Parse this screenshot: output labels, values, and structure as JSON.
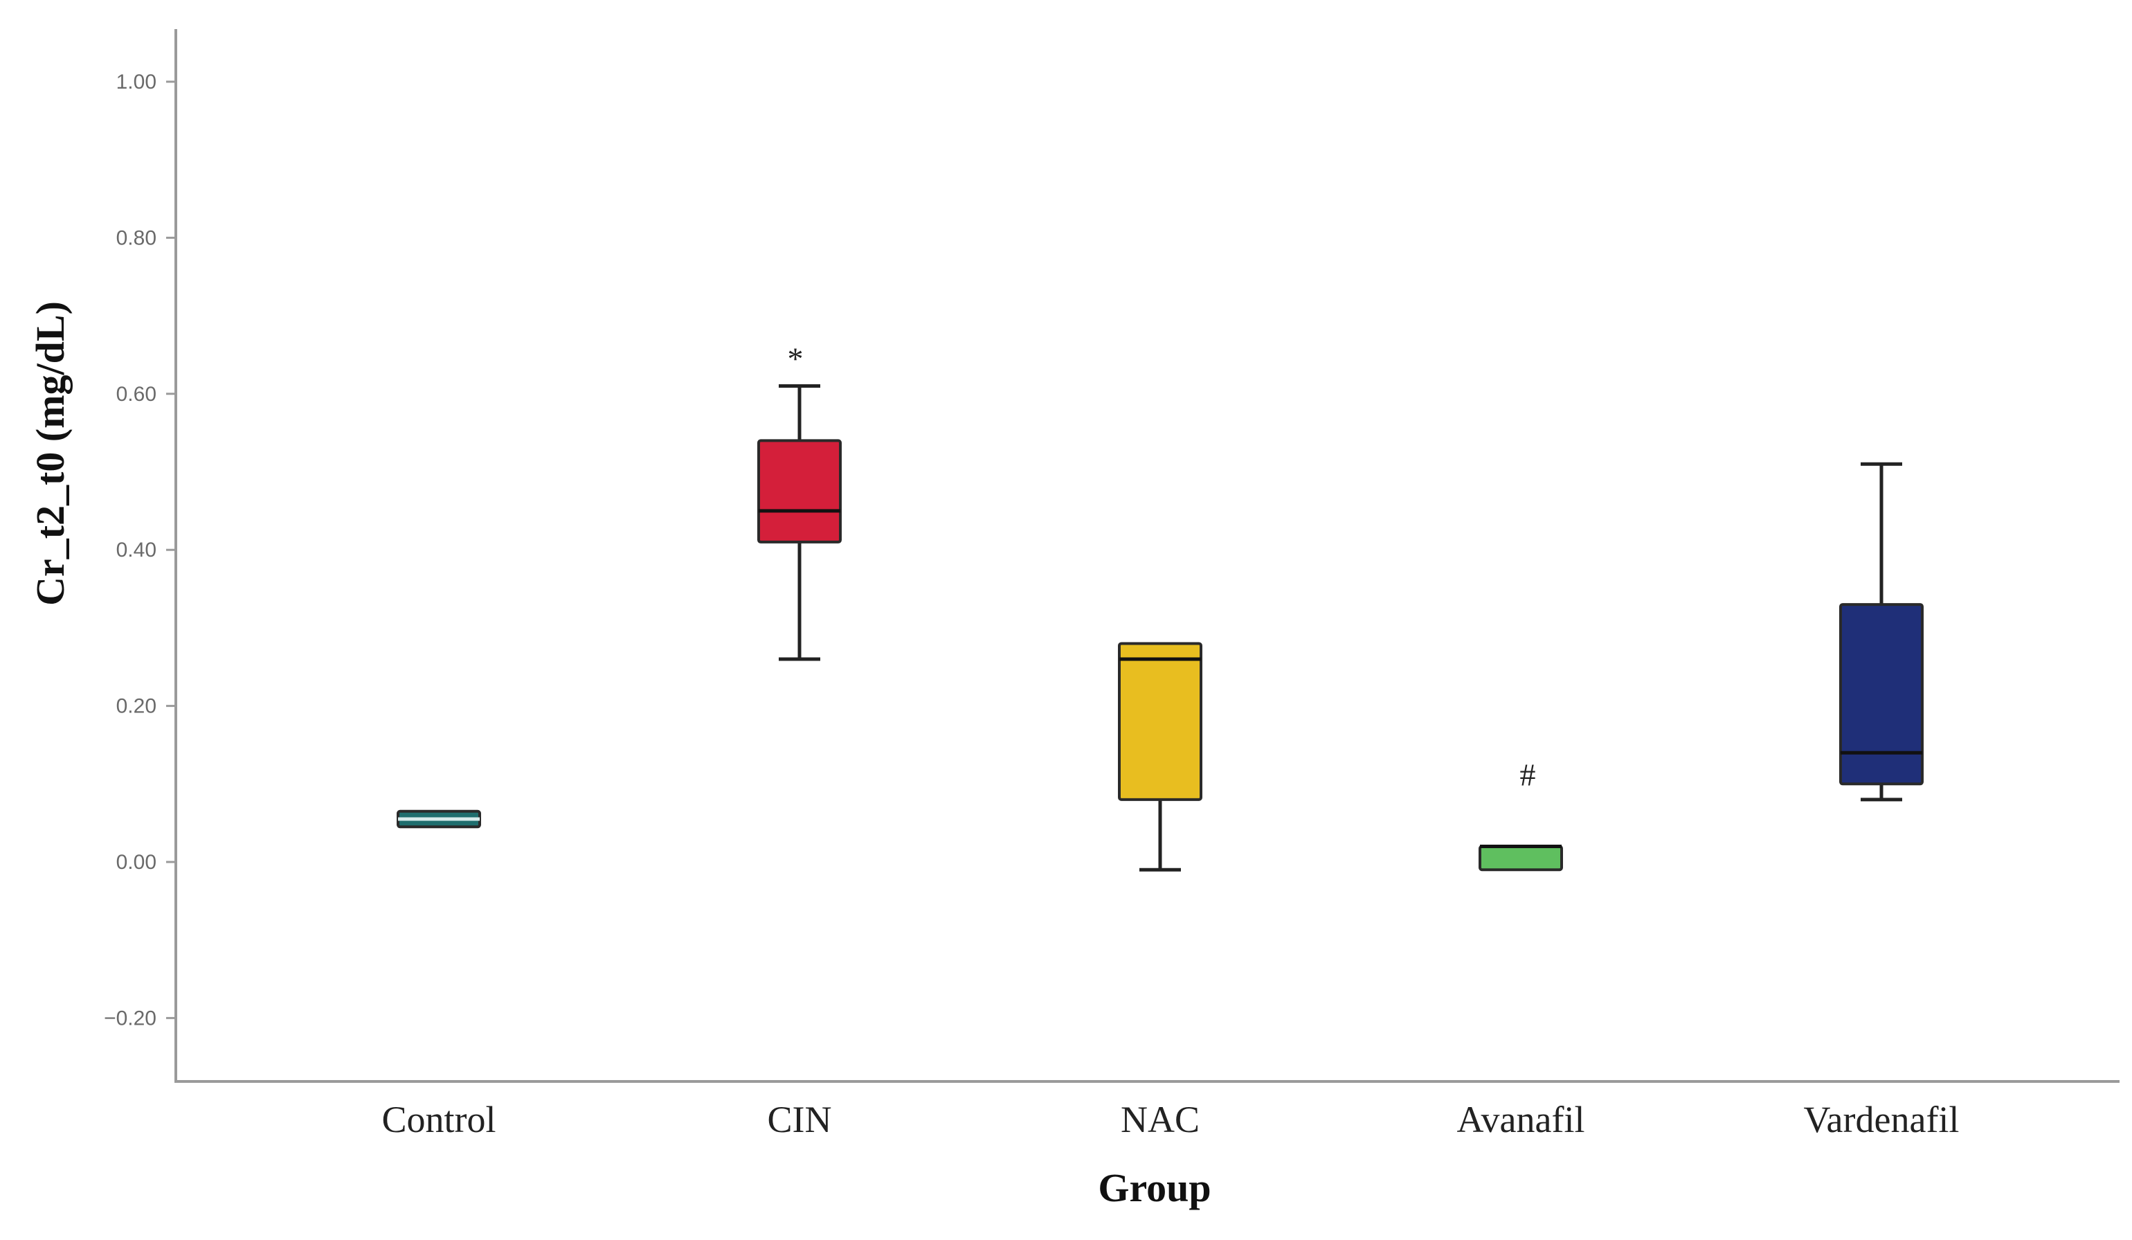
{
  "chart_data": {
    "type": "box",
    "title": "",
    "xlabel": "Group",
    "ylabel": "Cr_t2_t0 (mg/dL)",
    "ylim": [
      -0.24,
      1.07
    ],
    "yticks": [
      -0.2,
      0.0,
      0.2,
      0.4,
      0.6,
      0.8,
      1.0
    ],
    "ytick_labels": [
      "−0.20",
      "0.00",
      "0.20",
      "0.40",
      "0.60",
      "0.80",
      "1.00"
    ],
    "grid": false,
    "legend": "none",
    "categories": [
      "Control",
      "CIN",
      "NAC",
      "Avanafil",
      "Vardenafil"
    ],
    "boxes": [
      {
        "name": "Control",
        "whisker_low": 0.045,
        "q1": 0.045,
        "median": 0.055,
        "q3": 0.065,
        "whisker_high": 0.065,
        "color": "#1f6e6e",
        "annotation": ""
      },
      {
        "name": "CIN",
        "whisker_low": 0.26,
        "q1": 0.41,
        "median": 0.45,
        "q3": 0.54,
        "whisker_high": 0.61,
        "color": "#d41f3a",
        "annotation": "*"
      },
      {
        "name": "NAC",
        "whisker_low": -0.01,
        "q1": 0.08,
        "median": 0.26,
        "q3": 0.28,
        "whisker_high": 0.28,
        "color": "#e8be20",
        "annotation": ""
      },
      {
        "name": "Avanafil",
        "whisker_low": -0.01,
        "q1": -0.01,
        "median": 0.02,
        "q3": 0.02,
        "whisker_high": 0.02,
        "color": "#5fbf5f",
        "annotation": "#"
      },
      {
        "name": "Vardenafil",
        "whisker_low": 0.08,
        "q1": 0.1,
        "median": 0.14,
        "q3": 0.33,
        "whisker_high": 0.51,
        "color": "#1f2f78",
        "annotation": ""
      }
    ]
  }
}
